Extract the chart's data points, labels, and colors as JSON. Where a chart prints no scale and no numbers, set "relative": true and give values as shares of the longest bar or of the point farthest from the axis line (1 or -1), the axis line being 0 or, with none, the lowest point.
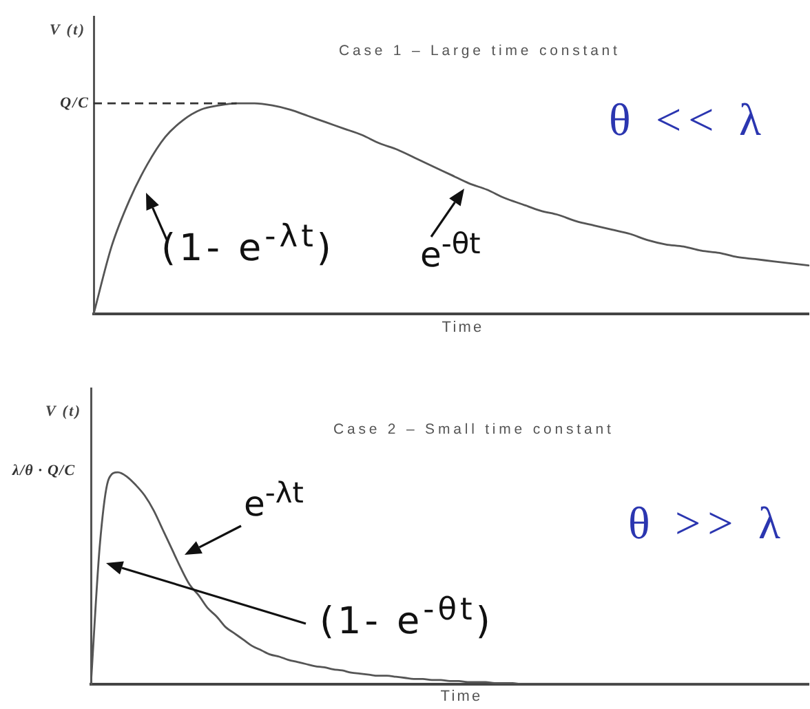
{
  "chart_data": [
    {
      "type": "line",
      "title": "Case 1 – Large time constant",
      "xlabel": "Time",
      "ylabel": "V (t)",
      "relative": true,
      "categories": [
        null,
        null,
        null,
        null,
        null,
        null,
        null,
        null,
        null,
        null,
        null,
        null,
        null,
        null,
        null,
        null,
        null,
        null,
        null,
        null,
        null,
        null,
        null,
        null,
        null,
        null,
        null,
        null,
        null,
        null,
        null,
        null,
        null,
        null,
        null,
        null,
        null,
        null,
        null,
        null,
        null
      ],
      "series": [
        {
          "color": "#555555",
          "values": [
            0,
            0.32,
            0.54,
            0.71,
            0.84,
            0.92,
            0.97,
            0.99,
            1,
            1,
            0.99,
            0.97,
            0.94,
            0.91,
            0.88,
            0.85,
            0.81,
            0.78,
            0.74,
            0.7,
            0.66,
            0.62,
            0.59,
            0.55,
            0.52,
            0.49,
            0.47,
            0.44,
            0.42,
            0.4,
            0.38,
            0.35,
            0.33,
            0.32,
            0.3,
            0.29,
            0.27,
            0.26,
            0.25,
            0.24,
            0.23
          ]
        }
      ],
      "ref_lines": [
        {
          "axis": "y",
          "value": 1,
          "label": "Q/C",
          "line_style": "dashed",
          "color": "#333333"
        }
      ],
      "annotations": [
        "(1- e$^{-λt}$)",
        "e$^{-θt}$",
        "θ << λ"
      ]
    },
    {
      "type": "line",
      "title": "Case 2 – Small time constant",
      "xlabel": "Time",
      "ylabel": "V (t)",
      "relative": true,
      "categories": [
        null,
        null,
        null,
        null,
        null,
        null,
        null,
        null,
        null,
        null,
        null,
        null,
        null,
        null,
        null,
        null,
        null,
        null,
        null,
        null,
        null,
        null,
        null,
        null,
        null,
        null,
        null,
        null,
        null,
        null,
        null,
        null,
        null,
        null,
        null,
        null,
        null,
        null,
        null,
        null,
        null,
        null,
        null,
        null,
        null,
        null,
        null,
        null,
        null,
        null,
        null,
        null,
        null,
        null,
        null,
        null,
        null,
        null,
        null,
        null,
        null,
        null,
        null,
        null,
        null,
        null,
        null,
        null,
        null,
        null,
        null,
        null,
        null,
        null,
        null,
        null,
        null,
        null,
        null,
        null,
        null
      ],
      "series": [
        {
          "color": "#555555",
          "values": [
            0,
            0.66,
            0.97,
            1,
            0.98,
            0.94,
            0.89,
            0.82,
            0.73,
            0.64,
            0.55,
            0.47,
            0.42,
            0.36,
            0.32,
            0.27,
            0.24,
            0.21,
            0.18,
            0.16,
            0.14,
            0.13,
            0.115,
            0.105,
            0.095,
            0.085,
            0.08,
            0.07,
            0.065,
            0.055,
            0.05,
            0.045,
            0.04,
            0.04,
            0.035,
            0.03,
            0.025,
            0.025,
            0.02,
            0.02,
            0.015,
            0.015,
            0.01,
            0.01,
            0.01,
            0.005,
            0.005,
            0.005,
            0,
            0,
            0,
            0,
            0,
            0,
            0,
            0,
            0,
            0,
            0,
            0,
            0,
            0,
            0,
            0,
            0,
            0,
            0,
            0,
            0,
            0,
            0,
            0,
            0,
            0,
            0,
            0,
            0,
            0,
            0,
            0,
            0
          ]
        }
      ],
      "annotations": [
        "λ/θ · Q/C",
        "e$^{-λt}$",
        "(1- e$^{-θt}$)",
        "θ >> λ"
      ]
    }
  ]
}
